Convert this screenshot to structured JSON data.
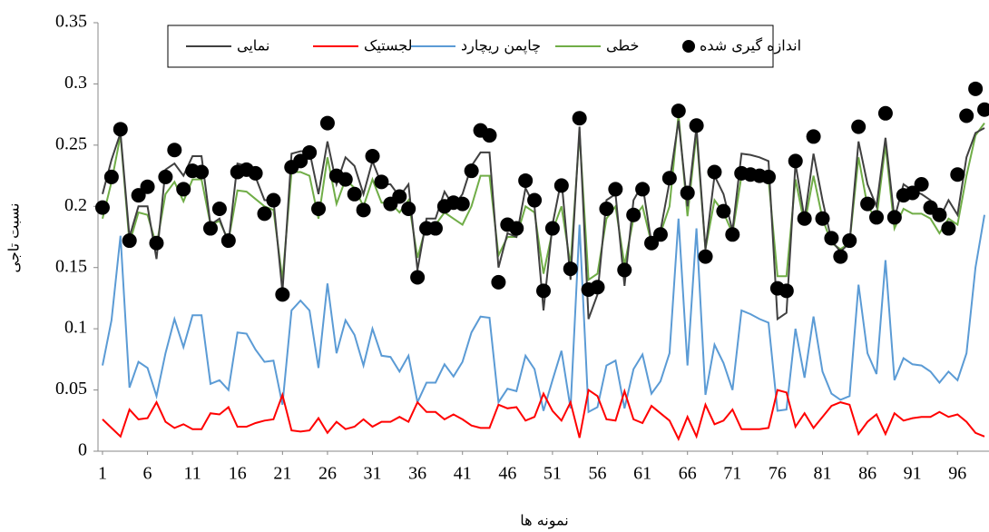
{
  "chart_data": {
    "type": "line",
    "x_label": "نمونه ها",
    "y_label": "نسبت تاجی",
    "x": [
      1,
      2,
      3,
      4,
      5,
      6,
      7,
      8,
      9,
      10,
      11,
      12,
      13,
      14,
      15,
      16,
      17,
      18,
      19,
      20,
      21,
      22,
      23,
      24,
      25,
      26,
      27,
      28,
      29,
      30,
      31,
      32,
      33,
      34,
      35,
      36,
      37,
      38,
      39,
      40,
      41,
      42,
      43,
      44,
      45,
      46,
      47,
      48,
      49,
      50,
      51,
      52,
      53,
      54,
      55,
      56,
      57,
      58,
      59,
      60,
      61,
      62,
      63,
      64,
      65,
      66,
      67,
      68,
      69,
      70,
      71,
      72,
      73,
      74,
      75,
      76,
      77,
      78,
      79,
      80,
      81,
      82,
      83,
      84,
      85,
      86,
      87,
      88,
      89,
      90,
      91,
      92,
      93,
      94,
      95,
      96,
      97,
      98,
      99
    ],
    "xlim": [
      0.5,
      99.5
    ],
    "xticks": [
      1,
      6,
      11,
      16,
      21,
      26,
      31,
      36,
      41,
      46,
      51,
      56,
      61,
      66,
      71,
      76,
      81,
      86,
      91,
      96
    ],
    "ylim": [
      0,
      0.35
    ],
    "yticks": [
      0,
      0.05,
      0.1,
      0.15,
      0.2,
      0.25,
      0.3,
      0.35
    ],
    "series": [
      {
        "name": "اندازه گیری شده",
        "color": "#000000",
        "style": "markers",
        "values": [
          0.199,
          0.224,
          0.263,
          0.172,
          0.209,
          0.216,
          0.17,
          0.224,
          0.246,
          0.214,
          0.229,
          0.228,
          0.182,
          0.198,
          0.172,
          0.228,
          0.23,
          0.227,
          0.194,
          0.205,
          0.128,
          0.232,
          0.237,
          0.244,
          0.198,
          0.268,
          0.225,
          0.222,
          0.21,
          0.197,
          0.241,
          0.22,
          0.202,
          0.208,
          0.198,
          0.142,
          0.182,
          0.182,
          0.2,
          0.203,
          0.202,
          0.229,
          0.262,
          0.258,
          0.138,
          0.185,
          0.182,
          0.221,
          0.205,
          0.131,
          0.182,
          0.217,
          0.149,
          0.272,
          0.132,
          0.134,
          0.198,
          0.214,
          0.148,
          0.193,
          0.214,
          0.17,
          0.177,
          0.223,
          0.278,
          0.211,
          0.266,
          0.159,
          0.228,
          0.196,
          0.177,
          0.227,
          0.226,
          0.225,
          0.224,
          0.133,
          0.131,
          0.237,
          0.19,
          0.257,
          0.19,
          0.174,
          0.159,
          0.172,
          0.265,
          0.202,
          0.191,
          0.276,
          0.191,
          0.209,
          0.211,
          0.218,
          0.199,
          0.193,
          0.182,
          0.226,
          0.274,
          0.296,
          0.279
        ]
      },
      {
        "name": "خطی",
        "color": "#70ad47",
        "style": "line",
        "values": [
          0.19,
          0.22,
          0.258,
          0.17,
          0.195,
          0.193,
          0.168,
          0.21,
          0.22,
          0.204,
          0.222,
          0.222,
          0.185,
          0.188,
          0.172,
          0.213,
          0.212,
          0.206,
          0.2,
          0.197,
          0.14,
          0.228,
          0.228,
          0.225,
          0.19,
          0.24,
          0.202,
          0.222,
          0.215,
          0.2,
          0.222,
          0.203,
          0.203,
          0.195,
          0.205,
          0.158,
          0.185,
          0.185,
          0.195,
          0.19,
          0.185,
          0.2,
          0.225,
          0.225,
          0.16,
          0.175,
          0.175,
          0.2,
          0.195,
          0.145,
          0.18,
          0.2,
          0.152,
          0.26,
          0.14,
          0.145,
          0.19,
          0.2,
          0.152,
          0.19,
          0.2,
          0.17,
          0.178,
          0.2,
          0.275,
          0.192,
          0.26,
          0.165,
          0.205,
          0.195,
          0.178,
          0.225,
          0.225,
          0.222,
          0.222,
          0.143,
          0.143,
          0.222,
          0.185,
          0.225,
          0.19,
          0.17,
          0.165,
          0.17,
          0.24,
          0.2,
          0.19,
          0.25,
          0.182,
          0.198,
          0.194,
          0.194,
          0.19,
          0.178,
          0.19,
          0.185,
          0.225,
          0.258,
          0.268
        ]
      },
      {
        "name": "چاپمن ریچارد",
        "color": "#5b9bd5",
        "style": "line",
        "values": [
          0.07,
          0.107,
          0.176,
          0.052,
          0.073,
          0.068,
          0.045,
          0.08,
          0.108,
          0.085,
          0.111,
          0.111,
          0.055,
          0.058,
          0.05,
          0.097,
          0.096,
          0.083,
          0.073,
          0.074,
          0.038,
          0.115,
          0.123,
          0.115,
          0.068,
          0.137,
          0.08,
          0.107,
          0.095,
          0.07,
          0.1,
          0.078,
          0.077,
          0.065,
          0.078,
          0.04,
          0.056,
          0.056,
          0.071,
          0.061,
          0.073,
          0.097,
          0.11,
          0.109,
          0.04,
          0.051,
          0.049,
          0.078,
          0.067,
          0.033,
          0.058,
          0.082,
          0.035,
          0.185,
          0.032,
          0.036,
          0.07,
          0.074,
          0.035,
          0.067,
          0.079,
          0.047,
          0.057,
          0.08,
          0.19,
          0.07,
          0.182,
          0.046,
          0.087,
          0.072,
          0.05,
          0.115,
          0.112,
          0.108,
          0.105,
          0.033,
          0.034,
          0.1,
          0.06,
          0.11,
          0.065,
          0.047,
          0.042,
          0.045,
          0.136,
          0.08,
          0.063,
          0.156,
          0.058,
          0.076,
          0.071,
          0.07,
          0.065,
          0.056,
          0.065,
          0.058,
          0.08,
          0.15,
          0.193
        ]
      },
      {
        "name": "لجستیک",
        "color": "#ff0000",
        "style": "line",
        "values": [
          0.026,
          0.019,
          0.012,
          0.034,
          0.026,
          0.027,
          0.04,
          0.024,
          0.019,
          0.022,
          0.018,
          0.018,
          0.031,
          0.03,
          0.036,
          0.02,
          0.02,
          0.023,
          0.025,
          0.026,
          0.046,
          0.017,
          0.016,
          0.017,
          0.027,
          0.015,
          0.024,
          0.018,
          0.02,
          0.026,
          0.02,
          0.024,
          0.024,
          0.028,
          0.024,
          0.04,
          0.032,
          0.032,
          0.026,
          0.03,
          0.026,
          0.021,
          0.019,
          0.019,
          0.038,
          0.035,
          0.036,
          0.025,
          0.028,
          0.047,
          0.033,
          0.025,
          0.04,
          0.011,
          0.05,
          0.045,
          0.026,
          0.025,
          0.049,
          0.026,
          0.023,
          0.037,
          0.031,
          0.025,
          0.01,
          0.028,
          0.012,
          0.038,
          0.022,
          0.025,
          0.034,
          0.018,
          0.018,
          0.018,
          0.019,
          0.05,
          0.048,
          0.02,
          0.031,
          0.019,
          0.028,
          0.037,
          0.04,
          0.038,
          0.014,
          0.024,
          0.03,
          0.014,
          0.031,
          0.025,
          0.027,
          0.028,
          0.028,
          0.032,
          0.028,
          0.03,
          0.024,
          0.015,
          0.012
        ]
      },
      {
        "name": "نمایی",
        "color": "#404040",
        "style": "line",
        "values": [
          0.21,
          0.238,
          0.26,
          0.175,
          0.2,
          0.2,
          0.157,
          0.23,
          0.235,
          0.225,
          0.241,
          0.241,
          0.185,
          0.19,
          0.17,
          0.235,
          0.233,
          0.224,
          0.205,
          0.205,
          0.13,
          0.243,
          0.245,
          0.245,
          0.21,
          0.253,
          0.218,
          0.24,
          0.233,
          0.21,
          0.237,
          0.218,
          0.218,
          0.208,
          0.218,
          0.148,
          0.19,
          0.19,
          0.212,
          0.2,
          0.21,
          0.233,
          0.244,
          0.244,
          0.15,
          0.178,
          0.175,
          0.215,
          0.2,
          0.115,
          0.185,
          0.222,
          0.14,
          0.265,
          0.108,
          0.128,
          0.205,
          0.21,
          0.135,
          0.205,
          0.218,
          0.17,
          0.18,
          0.22,
          0.27,
          0.2,
          0.265,
          0.165,
          0.225,
          0.21,
          0.18,
          0.243,
          0.242,
          0.24,
          0.237,
          0.108,
          0.113,
          0.235,
          0.19,
          0.243,
          0.205,
          0.172,
          0.163,
          0.17,
          0.253,
          0.218,
          0.2,
          0.256,
          0.19,
          0.218,
          0.213,
          0.21,
          0.205,
          0.19,
          0.205,
          0.193,
          0.24,
          0.26,
          0.264
        ]
      }
    ]
  }
}
